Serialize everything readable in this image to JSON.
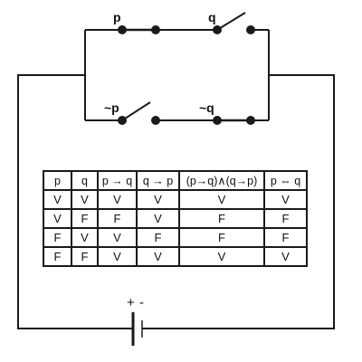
{
  "switches": {
    "top_left_label": "p",
    "top_right_label": "q",
    "bottom_left_label": "~p",
    "bottom_right_label": "~q"
  },
  "battery": {
    "plus": "+",
    "minus": "-"
  },
  "truth_table": {
    "headers": [
      "p",
      "q",
      "p → q",
      "q → p",
      "(p→q)∧(q→p)",
      "p ⇔ q"
    ],
    "rows": [
      [
        "V",
        "V",
        "V",
        "V",
        "V",
        "V"
      ],
      [
        "V",
        "F",
        "F",
        "V",
        "F",
        "F"
      ],
      [
        "F",
        "V",
        "V",
        "F",
        "F",
        "F"
      ],
      [
        "F",
        "F",
        "V",
        "V",
        "V",
        "V"
      ]
    ]
  }
}
